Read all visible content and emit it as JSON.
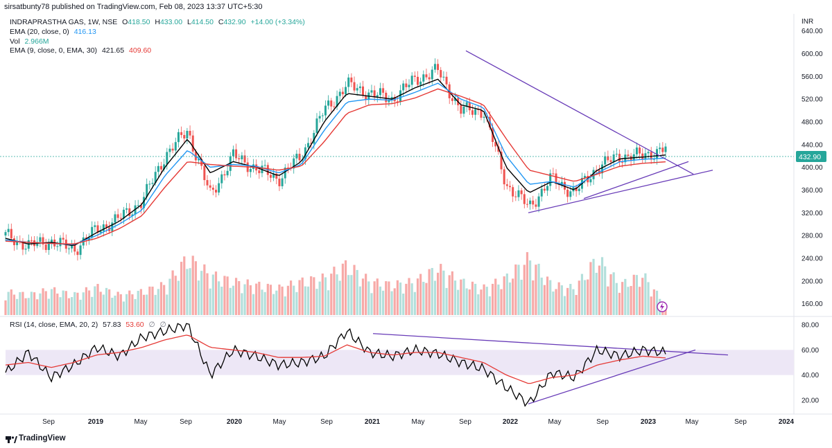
{
  "header": {
    "published": "sirsatbunty78 published on TradingView.com, Feb 08, 2023 13:37 UTC+5:30"
  },
  "legend": {
    "symbol": "INDRAPRASTHA GAS, 1W, NSE",
    "o_label": "O",
    "o_val": "418.50",
    "h_label": "H",
    "h_val": "433.00",
    "l_label": "L",
    "l_val": "414.50",
    "c_label": "C",
    "c_val": "432.90",
    "change": "+14.00 (+3.34%)",
    "ema20_label": "EMA (20, close, 0)",
    "ema20_val": "416.13",
    "vol_label": "Vol",
    "vol_val": "2.966M",
    "ema9_label": "EMA (9, close, 0, EMA, 30)",
    "ema9_val1": "421.65",
    "ema9_val2": "409.60",
    "rsi_label": "RSI (14, close, EMA, 20, 2)",
    "rsi_val": "57.83",
    "rsi_ma": "53.60",
    "rsi_z1": "∅",
    "rsi_z2": "∅"
  },
  "currency": "INR",
  "price_badge": "432.90",
  "footer": {
    "brand": "TradingView"
  },
  "colors": {
    "up": "#26a69a",
    "down": "#ef5350",
    "ema9": "#000000",
    "ema20": "#2196f3",
    "ema30": "#e53935",
    "trend": "#673ab7",
    "rsi_band": "#ede7f6"
  },
  "chart_data": [
    {
      "type": "line",
      "pane": "price",
      "title": "INDRAPRASTHA GAS, 1W, NSE",
      "yticks": [
        160,
        200,
        240,
        280,
        320,
        360,
        400,
        440,
        480,
        520,
        560,
        600,
        640
      ],
      "ylim": [
        140,
        670
      ],
      "xticks": [
        "Sep",
        "2019",
        "May",
        "Sep",
        "2020",
        "May",
        "Sep",
        "2021",
        "May",
        "Sep",
        "2022",
        "May",
        "Sep",
        "2023",
        "May",
        "Sep",
        "2024"
      ],
      "x": [
        "2018-06",
        "2018-09",
        "2018-11",
        "2019-01",
        "2019-04",
        "2019-07",
        "2019-10",
        "2019-12",
        "2020-02",
        "2020-03",
        "2020-04",
        "2020-06",
        "2020-08",
        "2020-10",
        "2020-12",
        "2021-01",
        "2021-03",
        "2021-05",
        "2021-07",
        "2021-08",
        "2021-10",
        "2021-12",
        "2022-02",
        "2022-03",
        "2022-05",
        "2022-06",
        "2022-08",
        "2022-10",
        "2022-12",
        "2023-02"
      ],
      "series": [
        {
          "name": "Close",
          "values": [
            280,
            262,
            270,
            255,
            290,
            310,
            340,
            420,
            465,
            350,
            420,
            398,
            380,
            420,
            500,
            545,
            530,
            520,
            555,
            570,
            500,
            500,
            370,
            330,
            380,
            355,
            400,
            420,
            420,
            433
          ]
        },
        {
          "name": "EMA 9",
          "values": [
            275,
            265,
            268,
            262,
            285,
            305,
            335,
            400,
            450,
            390,
            410,
            400,
            385,
            410,
            480,
            530,
            525,
            520,
            540,
            555,
            510,
            500,
            400,
            355,
            375,
            360,
            395,
            415,
            418,
            421.65
          ]
        },
        {
          "name": "EMA 20",
          "values": [
            272,
            268,
            266,
            264,
            280,
            300,
            325,
            385,
            430,
            400,
            405,
            402,
            390,
            405,
            465,
            515,
            520,
            518,
            532,
            548,
            520,
            505,
            420,
            370,
            375,
            365,
            390,
            410,
            414,
            416.13
          ]
        },
        {
          "name": "EMA 30",
          "values": [
            270,
            268,
            266,
            265,
            275,
            292,
            315,
            365,
            410,
            405,
            402,
            400,
            395,
            402,
            445,
            495,
            510,
            512,
            522,
            538,
            525,
            510,
            450,
            395,
            385,
            375,
            388,
            402,
            407,
            409.6
          ]
        }
      ]
    },
    {
      "type": "bar",
      "pane": "volume",
      "name": "Vol",
      "note": "relative weekly volume heights (0-1)",
      "values": [
        0.35,
        0.3,
        0.38,
        0.3,
        0.42,
        0.3,
        0.35,
        0.45,
        0.85,
        0.6,
        0.5,
        0.45,
        0.4,
        0.5,
        0.55,
        0.75,
        0.5,
        0.45,
        0.5,
        0.7,
        0.5,
        0.4,
        0.55,
        0.85,
        0.45,
        0.4,
        0.85,
        0.45,
        0.6,
        0.15
      ]
    },
    {
      "type": "line",
      "pane": "rsi",
      "title": "RSI (14, close, EMA, 20, 2)",
      "yticks": [
        20,
        40,
        60,
        80
      ],
      "ylim": [
        10,
        85
      ],
      "band": [
        40,
        60
      ],
      "x": [
        "2018-06",
        "2018-09",
        "2018-11",
        "2019-01",
        "2019-04",
        "2019-07",
        "2019-10",
        "2019-12",
        "2020-02",
        "2020-03",
        "2020-04",
        "2020-06",
        "2020-08",
        "2020-10",
        "2020-12",
        "2021-01",
        "2021-03",
        "2021-05",
        "2021-07",
        "2021-08",
        "2021-10",
        "2021-12",
        "2022-02",
        "2022-03",
        "2022-05",
        "2022-06",
        "2022-08",
        "2022-10",
        "2022-12",
        "2023-02"
      ],
      "series": [
        {
          "name": "RSI",
          "values": [
            42,
            58,
            38,
            48,
            62,
            55,
            70,
            75,
            80,
            40,
            60,
            55,
            48,
            50,
            55,
            75,
            58,
            55,
            60,
            57,
            50,
            45,
            30,
            17,
            42,
            38,
            60,
            55,
            60,
            57.83
          ]
        },
        {
          "name": "RSI MA",
          "values": [
            48,
            50,
            46,
            50,
            56,
            58,
            62,
            68,
            72,
            62,
            60,
            58,
            54,
            54,
            55,
            64,
            58,
            56,
            58,
            58,
            54,
            50,
            40,
            33,
            38,
            40,
            48,
            52,
            55,
            53.6
          ]
        }
      ]
    }
  ]
}
